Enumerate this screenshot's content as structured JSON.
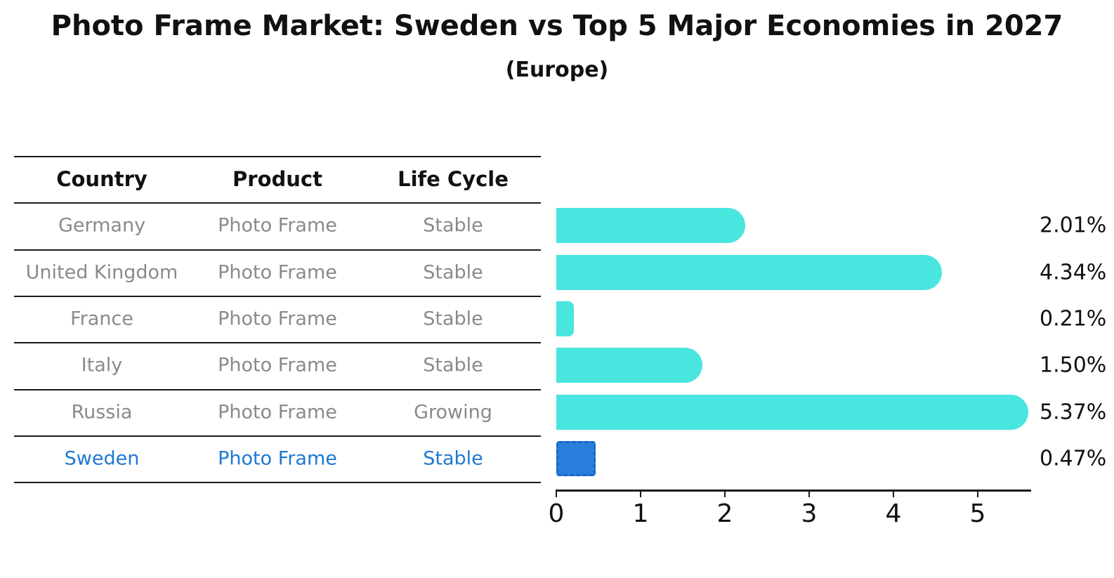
{
  "title": "Photo Frame Market: Sweden vs Top 5 Major Economies in 2027",
  "subtitle": "(Europe)",
  "colors": {
    "bar": "#49e5df",
    "highlight_bar": "#2a7fdc",
    "highlight_border": "#1a63c8",
    "highlight_text": "#1f78d1",
    "table_text": "#8a8a8a",
    "header_text": "#111111",
    "line": "#1a1a1a"
  },
  "table": {
    "headers": [
      "Country",
      "Product",
      "Life Cycle"
    ],
    "rows": [
      {
        "country": "Germany",
        "product": "Photo Frame",
        "life_cycle": "Stable",
        "highlight": false
      },
      {
        "country": "United Kingdom",
        "product": "Photo Frame",
        "life_cycle": "Stable",
        "highlight": false
      },
      {
        "country": "France",
        "product": "Photo Frame",
        "life_cycle": "Stable",
        "highlight": false
      },
      {
        "country": "Italy",
        "product": "Photo Frame",
        "life_cycle": "Stable",
        "highlight": false
      },
      {
        "country": "Russia",
        "product": "Photo Frame",
        "life_cycle": "Growing",
        "highlight": false
      },
      {
        "country": "Sweden",
        "product": "Photo Frame",
        "life_cycle": "Stable",
        "highlight": true
      }
    ]
  },
  "chart_data": {
    "type": "bar",
    "orientation": "horizontal",
    "title": "Photo Frame Market: Sweden vs Top 5 Major Economies in 2027 (Europe)",
    "categories": [
      "Germany",
      "United Kingdom",
      "France",
      "Italy",
      "Russia",
      "Sweden"
    ],
    "values": [
      2.01,
      4.34,
      0.21,
      1.5,
      5.37,
      0.47
    ],
    "labels": [
      "2.01%",
      "4.34%",
      "0.21%",
      "1.50%",
      "5.37%",
      "0.47%"
    ],
    "highlight_index": 5,
    "x_ticks": [
      0,
      1,
      2,
      3,
      4,
      5
    ],
    "xlim": [
      0,
      5.63
    ],
    "xlabel": "",
    "ylabel": "",
    "grid": false,
    "legend": false
  }
}
